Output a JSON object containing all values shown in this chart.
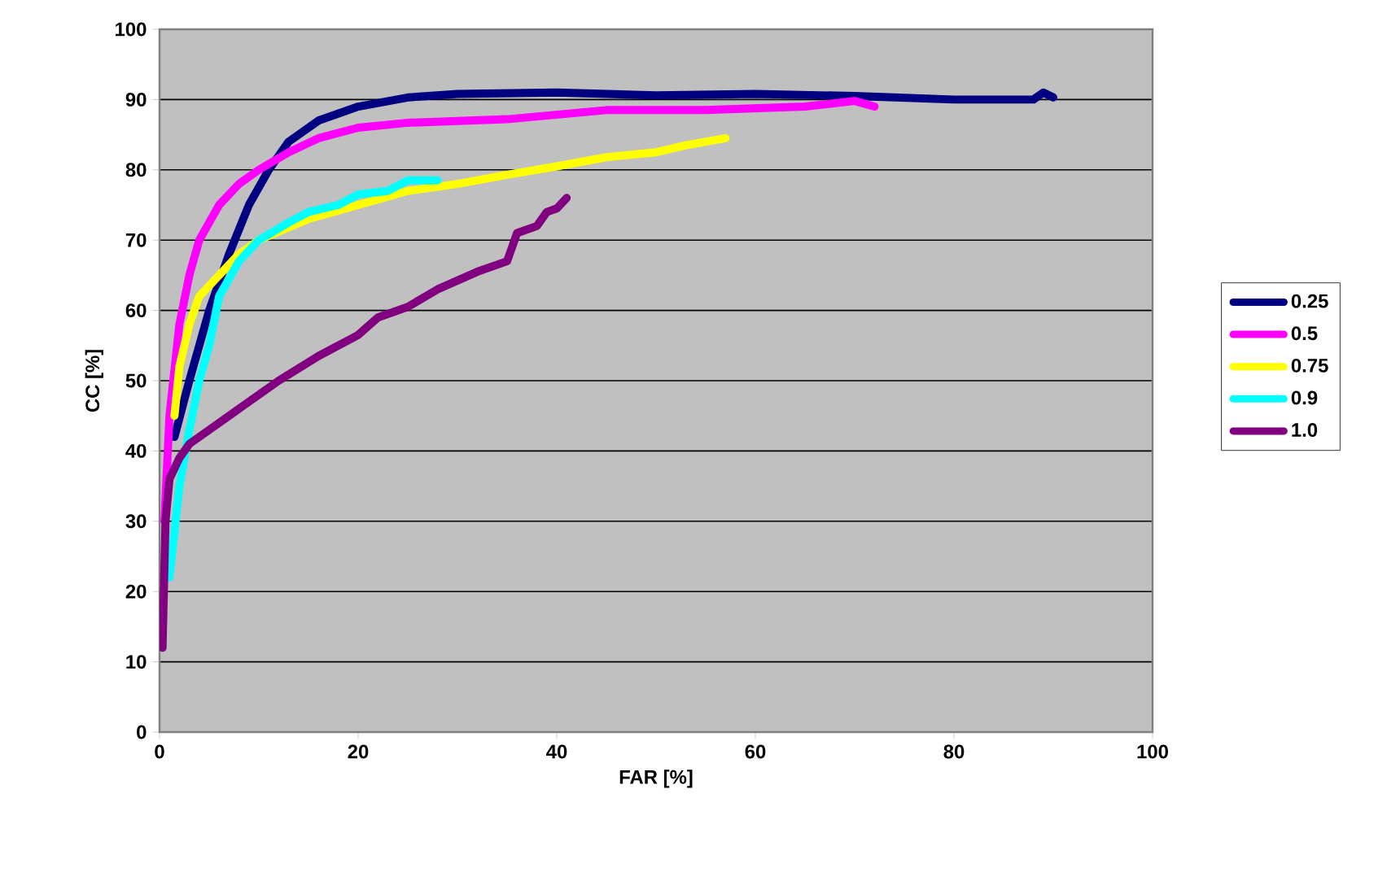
{
  "chart_data": {
    "type": "line",
    "xlabel": "FAR [%]",
    "ylabel": "CC [%]",
    "xlim": [
      0,
      100
    ],
    "ylim": [
      0,
      100
    ],
    "xticks": [
      0,
      20,
      40,
      60,
      80,
      100
    ],
    "yticks": [
      0,
      10,
      20,
      30,
      40,
      50,
      60,
      70,
      80,
      90,
      100
    ],
    "grid": "y",
    "legend": "right",
    "marker": "none",
    "line_style": "solid",
    "series": [
      {
        "name": "0.25",
        "color": "#000080",
        "x": [
          1.5,
          3,
          5,
          7,
          9,
          11,
          13,
          16,
          20,
          25,
          30,
          40,
          50,
          60,
          70,
          80,
          88,
          89,
          90
        ],
        "values": [
          42,
          50,
          60,
          68,
          75,
          80,
          84,
          87,
          89,
          90.3,
          90.8,
          91,
          90.6,
          90.8,
          90.5,
          90,
          90,
          91,
          90.3
        ]
      },
      {
        "name": "0.5",
        "color": "#ff00ff",
        "x": [
          0.5,
          1,
          2,
          3,
          4,
          6,
          8,
          10,
          13,
          16,
          20,
          25,
          35,
          45,
          55,
          65,
          70,
          72
        ],
        "values": [
          30,
          45,
          58,
          65,
          70,
          75,
          78,
          80,
          82.5,
          84.5,
          86,
          86.7,
          87.2,
          88.5,
          88.5,
          89,
          89.8,
          89
        ]
      },
      {
        "name": "0.75",
        "color": "#ffff00",
        "x": [
          1.5,
          2,
          3,
          4,
          6,
          8,
          10,
          15,
          20,
          25,
          30,
          35,
          40,
          45,
          50,
          53,
          57
        ],
        "values": [
          45,
          52,
          58,
          62,
          65,
          68,
          70,
          73,
          75,
          77,
          78,
          79.3,
          80.5,
          81.8,
          82.5,
          83.5,
          84.5
        ]
      },
      {
        "name": "0.9",
        "color": "#00ffff",
        "x": [
          1,
          2,
          3,
          4,
          5,
          6,
          8,
          10,
          13,
          15,
          18,
          20,
          23,
          25,
          28
        ],
        "values": [
          22,
          35,
          43,
          50,
          55,
          62,
          67,
          70,
          72.5,
          74,
          75,
          76.5,
          77,
          78.5,
          78.5
        ]
      },
      {
        "name": "1.0",
        "color": "#800080",
        "x": [
          0.3,
          0.6,
          1,
          2,
          3,
          5,
          8,
          12,
          16,
          20,
          22,
          25,
          28,
          32,
          35,
          36,
          38,
          39,
          40,
          41
        ],
        "values": [
          12,
          30,
          36,
          39,
          41,
          43,
          46,
          50,
          53.5,
          56.5,
          59,
          60.5,
          63,
          65.5,
          67,
          71,
          72,
          74,
          74.5,
          76
        ]
      }
    ]
  }
}
